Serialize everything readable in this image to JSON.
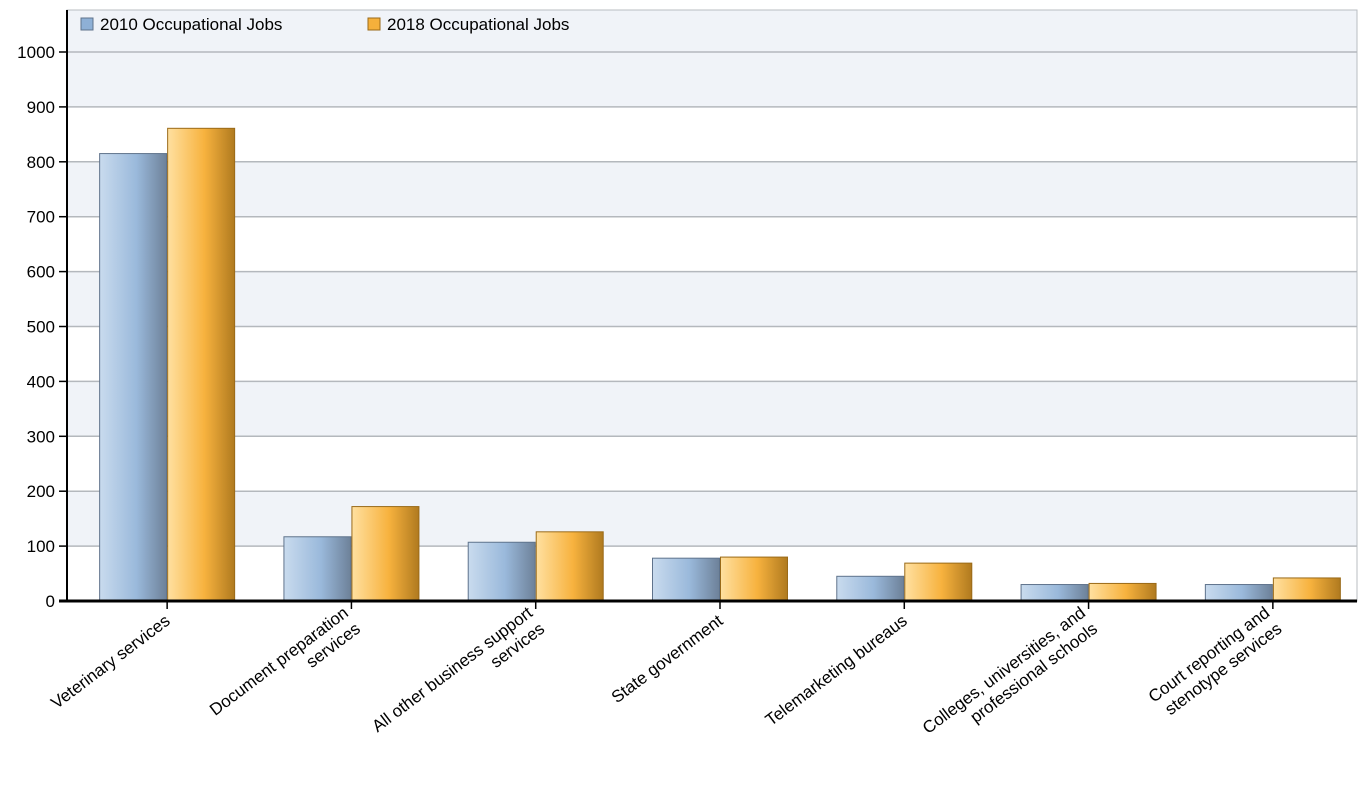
{
  "chart_data": {
    "type": "bar",
    "categories": [
      [
        "Veterinary services"
      ],
      [
        "Document preparation",
        "services"
      ],
      [
        "All other business support",
        "services"
      ],
      [
        "State government"
      ],
      [
        "Telemarketing bureaus"
      ],
      [
        "Colleges, universities, and",
        "professional schools"
      ],
      [
        "Court reporting and",
        "stenotype services"
      ]
    ],
    "series": [
      {
        "name": "2010 Occupational Jobs",
        "values": [
          815,
          117,
          107,
          78,
          45,
          30,
          30
        ],
        "color": "#8eb0d6"
      },
      {
        "name": "2018 Occupational Jobs",
        "values": [
          861,
          172,
          126,
          80,
          69,
          32,
          42
        ],
        "color": "#f5b03b"
      }
    ],
    "ylim": [
      0,
      1000
    ],
    "yticks": [
      0,
      100,
      200,
      300,
      400,
      500,
      600,
      700,
      800,
      900,
      1000
    ],
    "xlabel": "",
    "ylabel": "",
    "title": "",
    "grid": true,
    "legend_position": "top-left",
    "band_color": "#f0f3f8"
  }
}
